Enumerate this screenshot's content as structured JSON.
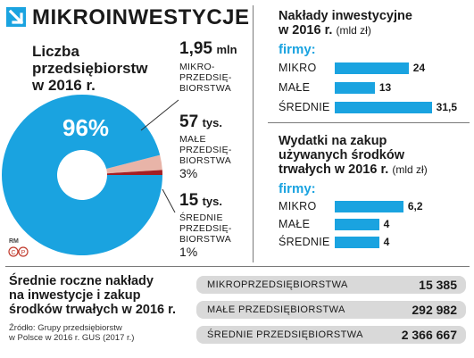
{
  "header": {
    "title": "MIKROINWESTYCJE"
  },
  "pie_section": {
    "heading_lines": [
      "Liczba",
      "przedsiębiorstw",
      "w 2016 r."
    ],
    "center_label": "96%",
    "logo_text": "RM",
    "items": [
      {
        "value": "1,95",
        "unit": "mln",
        "label_lines": [
          "MIKRO-",
          "PRZEDSIĘ-",
          "BIORSTWA"
        ],
        "pct": ""
      },
      {
        "value": "57",
        "unit": "tys.",
        "label_lines": [
          "MAŁE",
          "PRZEDSIĘ-",
          "BIORSTWA"
        ],
        "pct": "3%"
      },
      {
        "value": "15",
        "unit": "tys.",
        "label_lines": [
          "ŚREDNIE",
          "PRZEDSIĘ-",
          "BIORSTWA"
        ],
        "pct": "1%"
      }
    ]
  },
  "investments": {
    "title_lines": [
      "Nakłady inwestycyjne",
      "w 2016 r."
    ],
    "unit": "(mld zł)",
    "firmy": "firmy:"
  },
  "used_assets": {
    "title_lines": [
      "Wydatki na zakup",
      "używanych środków",
      "trwałych w 2016 r."
    ],
    "unit": "(mld zł)",
    "firmy": "firmy:"
  },
  "averages": {
    "title_lines": [
      "Średnie roczne nakłady",
      "na inwestycje i zakup",
      "środków trwałych w 2016 r."
    ],
    "source_lines": [
      "Źródło: Grupy przedsiębiorstw",
      "w Polsce w 2016 r. GUS (2017 r.)"
    ],
    "rows": [
      {
        "label": "MIKROPRZEDSIĘBIORSTWA",
        "value": "15 385"
      },
      {
        "label": "MAŁE PRZEDSIĘBIORSTWA",
        "value": "292 982"
      },
      {
        "label": "ŚREDNIE PRZEDSIĘBIORSTWA",
        "value": "2 366 667"
      }
    ]
  },
  "colors": {
    "accent": "#1aa3e0",
    "pie_small": "#e8b4a8",
    "pie_medium": "#a31e23",
    "row_bg": "#d9d9d9"
  },
  "chart_data": [
    {
      "type": "pie",
      "title": "Liczba przedsiębiorstw w 2016 r.",
      "categories": [
        "MIKRO",
        "MAŁE",
        "ŚREDNIE"
      ],
      "values": [
        96,
        3,
        1
      ],
      "labels": [
        "96%",
        "3%",
        "1%"
      ]
    },
    {
      "type": "bar",
      "title": "Nakłady inwestycyjne w 2016 r.",
      "unit": "(mld zł)",
      "categories": [
        "MIKRO",
        "MAŁE",
        "ŚREDNIE"
      ],
      "values": [
        24,
        13,
        31.5
      ],
      "value_labels": [
        "24",
        "13",
        "31,5"
      ]
    },
    {
      "type": "bar",
      "title": "Wydatki na zakup używanych środków trwałych w 2016 r.",
      "unit": "(mld zł)",
      "categories": [
        "MIKRO",
        "MAŁE",
        "ŚREDNIE"
      ],
      "values": [
        6.2,
        4,
        4
      ],
      "value_labels": [
        "6,2",
        "4",
        "4"
      ]
    }
  ]
}
